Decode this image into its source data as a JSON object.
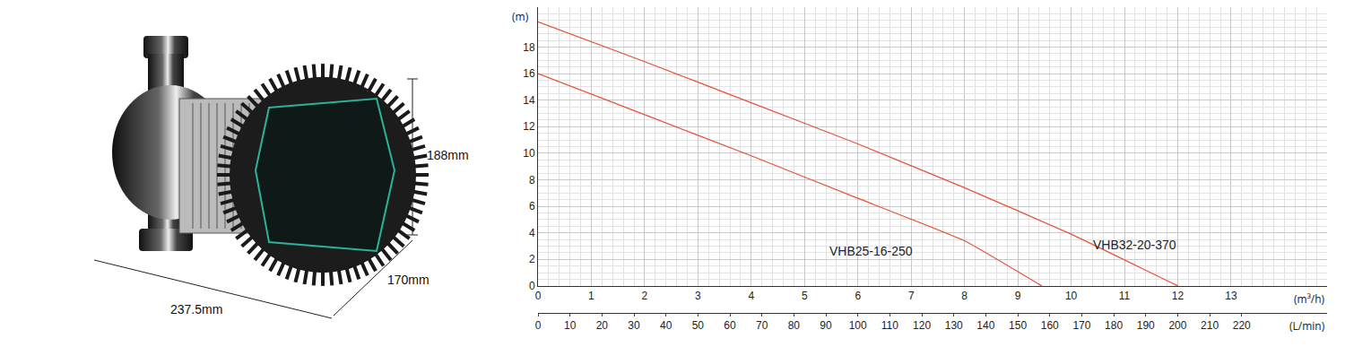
{
  "chart_data": {
    "type": "line",
    "y_label": "(m)",
    "x_label": "(m³/h)",
    "x2_label": "(L/min)",
    "xlim": [
      0,
      14.8
    ],
    "xticks": [
      0,
      1,
      2,
      3,
      4,
      5,
      6,
      7,
      8,
      9,
      10,
      11,
      12,
      13
    ],
    "x2lim": [
      0,
      246.7
    ],
    "x2ticks": [
      0,
      10,
      20,
      30,
      40,
      50,
      60,
      70,
      80,
      90,
      100,
      110,
      120,
      130,
      140,
      150,
      160,
      170,
      180,
      190,
      200,
      210,
      220
    ],
    "ylim": [
      0,
      21
    ],
    "yticks": [
      0,
      2,
      4,
      6,
      8,
      10,
      12,
      14,
      16,
      18
    ],
    "grid": true,
    "series": [
      {
        "name": "VHB25-16-250",
        "color": "#e8503a",
        "x": [
          0,
          2,
          4,
          6,
          8,
          9.45
        ],
        "values": [
          16,
          12.9,
          9.8,
          6.6,
          3.4,
          0
        ],
        "label_at": [
          6.25,
          2.6
        ]
      },
      {
        "name": "VHB32-20-370",
        "color": "#e8503a",
        "x": [
          0,
          2,
          4,
          6,
          8,
          10,
          12
        ],
        "values": [
          19.9,
          16.9,
          13.8,
          10.7,
          7.4,
          3.9,
          0
        ],
        "label_at": [
          11.2,
          3.1
        ]
      }
    ]
  },
  "product": {
    "dimensions": {
      "height": "188mm",
      "depth": "170mm",
      "width": "237.5mm"
    }
  }
}
